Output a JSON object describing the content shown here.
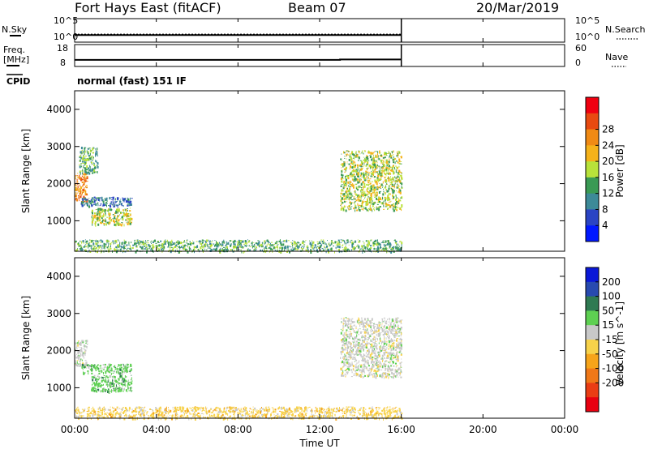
{
  "header": {
    "station": "Fort Hays East (fitACF)",
    "beam": "Beam 07",
    "date": "20/Mar/2019"
  },
  "noise_panel": {
    "left_label": "N.Sky",
    "right_label": "N.Search",
    "left_ticks": [
      "10^5",
      "10^0"
    ],
    "right_ticks": [
      "10^5",
      "10^0"
    ]
  },
  "freq_panel": {
    "left_label_line1": "Freq.",
    "left_label_line2": "[MHz]",
    "right_label": "Nave",
    "left_ticks": [
      "18",
      "8"
    ],
    "right_ticks": [
      "60",
      "0"
    ]
  },
  "cpid": {
    "label": "CPID",
    "value": "normal (fast) 151 IF"
  },
  "time_axis": {
    "ticks": [
      "00:00",
      "04:00",
      "08:00",
      "12:00",
      "16:00",
      "20:00",
      "00:00"
    ],
    "title": "Time UT"
  },
  "range_axis": {
    "title": "Slant Range [km]",
    "ticks": [
      "1000",
      "2000",
      "3000",
      "4000"
    ]
  },
  "power_colorbar": {
    "title": "Power [dB]",
    "ticks": [
      "4",
      "8",
      "12",
      "16",
      "20",
      "24",
      "28"
    ],
    "colors": [
      "#0018ff",
      "#2a44c4",
      "#3d8a98",
      "#3a9a54",
      "#b8e23a",
      "#f5b21a",
      "#f08a14",
      "#e84a10",
      "#f00010"
    ]
  },
  "velocity_colorbar": {
    "title": "Velocity [m s^-1]",
    "ticks": [
      "200",
      "100",
      "50",
      "15",
      "-15",
      "-50",
      "-100",
      "-200"
    ],
    "colors": [
      "#0a18d8",
      "#284ab0",
      "#2f7a52",
      "#5ed052",
      "#c8c8c8",
      "#f7d24a",
      "#f6a41a",
      "#f07818",
      "#ea3d14",
      "#e80010"
    ]
  },
  "chart_data": [
    {
      "type": "line",
      "title": "N.Sky / N.Search",
      "x": [
        0.0,
        16.0
      ],
      "series": [
        {
          "name": "N.Sky",
          "values": [
            1.5,
            1.5
          ]
        },
        {
          "name": "N.Search",
          "values": [
            1.7,
            1.7
          ]
        }
      ],
      "ylim": [
        0,
        5
      ],
      "xlim": [
        0,
        24
      ]
    },
    {
      "type": "line",
      "title": "Freq. / Nave",
      "x": [
        0.0,
        13.0,
        13.0,
        16.0
      ],
      "series": [
        {
          "name": "Freq.",
          "values": [
            11.0,
            11.0,
            11.2,
            11.2
          ]
        }
      ],
      "ylim": [
        8,
        18
      ],
      "xlim": [
        0,
        24
      ]
    },
    {
      "type": "heatmap",
      "title": "Power [dB]",
      "xlim": [
        0,
        24
      ],
      "ylim": [
        180,
        4500
      ],
      "echo_regions": [
        {
          "t0": 0.0,
          "t1": 0.6,
          "r0": 1500,
          "r1": 2300,
          "value_db": 24
        },
        {
          "t0": 0.3,
          "t1": 2.8,
          "r0": 1400,
          "r1": 1650,
          "value_db": 8
        },
        {
          "t0": 0.8,
          "t1": 2.8,
          "r0": 900,
          "r1": 1350,
          "value_db": 14
        },
        {
          "t0": 0.2,
          "t1": 1.1,
          "r0": 2300,
          "r1": 3000,
          "value_db": 10
        },
        {
          "t0": 13.0,
          "t1": 16.0,
          "r0": 1300,
          "r1": 2900,
          "value_db": 14
        },
        {
          "t0": 0.0,
          "t1": 16.0,
          "r0": 180,
          "r1": 500,
          "value_db": 10
        }
      ]
    },
    {
      "type": "heatmap",
      "title": "Velocity [m s^-1]",
      "xlim": [
        0,
        24
      ],
      "ylim": [
        180,
        4500
      ],
      "echo_regions": [
        {
          "t0": 0.0,
          "t1": 0.6,
          "r0": 1600,
          "r1": 2300,
          "value_ms": 0
        },
        {
          "t0": 0.3,
          "t1": 2.8,
          "r0": 1400,
          "r1": 1650,
          "value_ms": 20
        },
        {
          "t0": 0.8,
          "t1": 2.8,
          "r0": 900,
          "r1": 1350,
          "value_ms": 15
        },
        {
          "t0": 13.0,
          "t1": 16.0,
          "r0": 1300,
          "r1": 2900,
          "value_ms": 0
        },
        {
          "t0": 0.0,
          "t1": 16.0,
          "r0": 180,
          "r1": 500,
          "value_ms": -20
        }
      ]
    }
  ]
}
